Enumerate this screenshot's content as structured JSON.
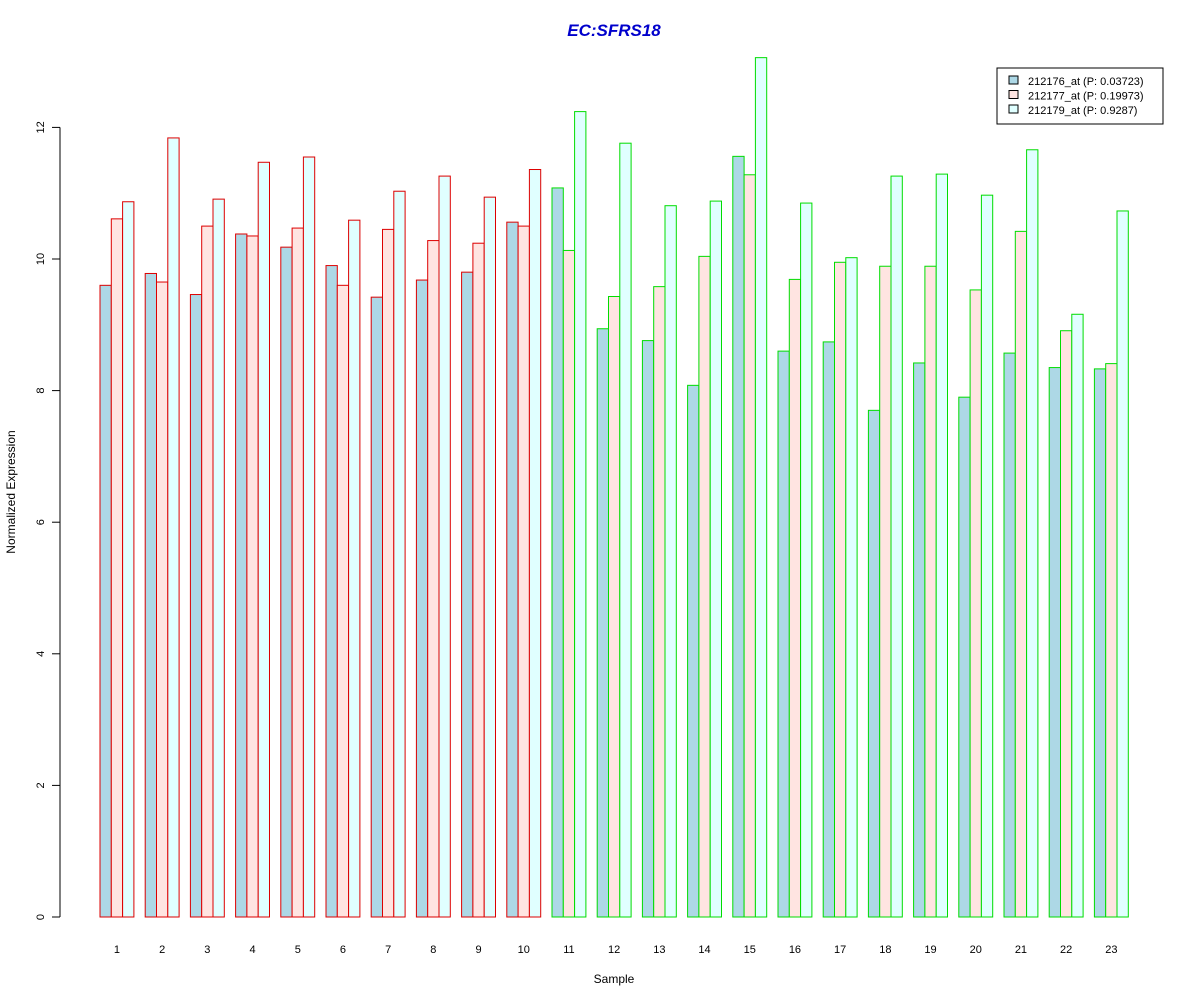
{
  "chart_data": {
    "type": "bar",
    "title": "EC:SFRS18",
    "xlabel": "Sample",
    "ylabel": "Normalized Expression",
    "ylim": [
      0,
      13
    ],
    "yticks": [
      0,
      2,
      4,
      6,
      8,
      10,
      12
    ],
    "categories": [
      "1",
      "2",
      "3",
      "4",
      "5",
      "6",
      "7",
      "8",
      "9",
      "10",
      "11",
      "12",
      "13",
      "14",
      "15",
      "16",
      "17",
      "18",
      "19",
      "20",
      "21",
      "22",
      "23"
    ],
    "group_border_colors": [
      "#dd0000",
      "#dd0000",
      "#dd0000",
      "#dd0000",
      "#dd0000",
      "#dd0000",
      "#dd0000",
      "#dd0000",
      "#dd0000",
      "#dd0000",
      "#00dd00",
      "#00dd00",
      "#00dd00",
      "#00dd00",
      "#00dd00",
      "#00dd00",
      "#00dd00",
      "#00dd00",
      "#00dd00",
      "#00dd00",
      "#00dd00",
      "#00dd00",
      "#00dd00"
    ],
    "legend_position": "top-right",
    "grid": false,
    "series": [
      {
        "name": "212176_at (P: 0.03723)",
        "color": "#add8e6",
        "values": [
          9.6,
          9.78,
          9.46,
          10.38,
          10.18,
          9.9,
          9.42,
          9.68,
          9.8,
          10.56,
          11.08,
          8.94,
          8.76,
          8.08,
          11.56,
          8.6,
          8.74,
          7.7,
          8.42,
          7.9,
          8.57,
          8.35,
          8.33
        ]
      },
      {
        "name": "212177_at (P: 0.19973)",
        "color": "#ffe4e1",
        "values": [
          10.61,
          9.65,
          10.5,
          10.35,
          10.47,
          9.6,
          10.45,
          10.28,
          10.24,
          10.5,
          10.13,
          9.43,
          9.58,
          10.04,
          11.28,
          9.69,
          9.95,
          9.89,
          9.89,
          9.53,
          10.42,
          8.91,
          8.41
        ]
      },
      {
        "name": "212179_at (P: 0.9287)",
        "color": "#e0ffff",
        "values": [
          10.87,
          11.84,
          10.91,
          11.47,
          11.55,
          10.59,
          11.03,
          11.26,
          10.94,
          11.36,
          12.24,
          11.76,
          10.81,
          10.88,
          13.06,
          10.85,
          10.02,
          11.26,
          11.29,
          10.97,
          11.66,
          9.16,
          10.73
        ]
      }
    ]
  }
}
